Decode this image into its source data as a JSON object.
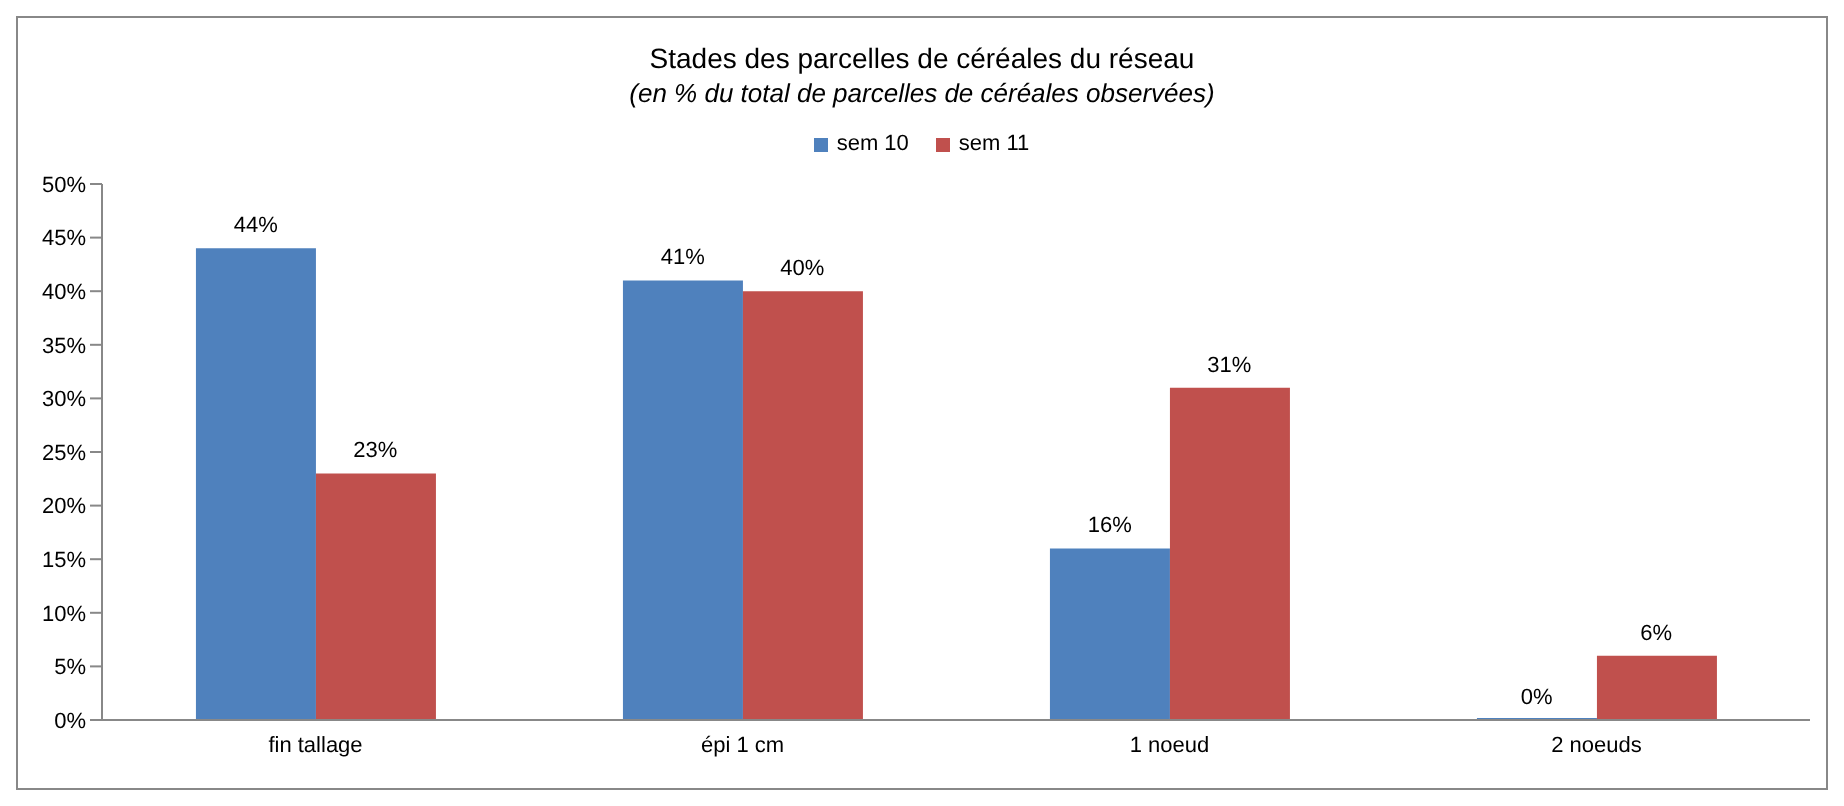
{
  "chart_data": {
    "type": "bar",
    "title": "Stades des parcelles de céréales du réseau",
    "subtitle": "(en %  du total de parcelles de céréales observées)",
    "categories": [
      "fin tallage",
      "épi 1 cm",
      "1 noeud",
      "2 noeuds"
    ],
    "series": [
      {
        "name": "sem 10",
        "color": "#4f81bd",
        "values": [
          44,
          41,
          16,
          0
        ],
        "value_labels": [
          "44%",
          "41%",
          "16%",
          "0%"
        ]
      },
      {
        "name": "sem 11",
        "color": "#c0504d",
        "values": [
          23,
          40,
          31,
          6
        ],
        "value_labels": [
          "23%",
          "40%",
          "31%",
          "6%"
        ]
      }
    ],
    "ylim": [
      0,
      50
    ],
    "yticks": [
      {
        "value": 0,
        "label": "0%"
      },
      {
        "value": 5,
        "label": "5%"
      },
      {
        "value": 10,
        "label": "10%"
      },
      {
        "value": 15,
        "label": "15%"
      },
      {
        "value": 20,
        "label": "20%"
      },
      {
        "value": 25,
        "label": "25%"
      },
      {
        "value": 30,
        "label": "30%"
      },
      {
        "value": 35,
        "label": "35%"
      },
      {
        "value": 40,
        "label": "40%"
      },
      {
        "value": 45,
        "label": "45%"
      },
      {
        "value": 50,
        "label": "50%"
      }
    ],
    "grid": false,
    "legend": "top"
  }
}
